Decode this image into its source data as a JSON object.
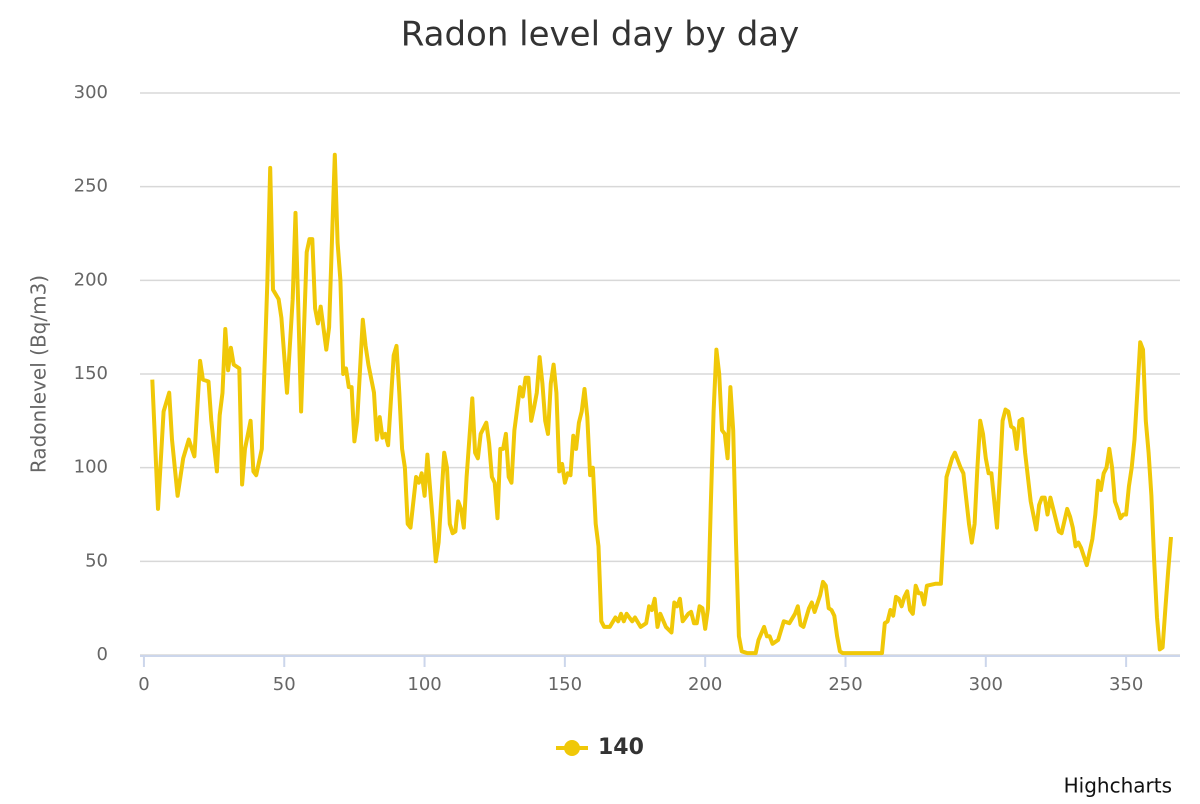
{
  "chart_data": {
    "type": "line",
    "title": "Radon level day by day",
    "y_label": "Radonlevel (Bq/m3)",
    "credits": "Highcharts",
    "xlim": [
      -1.4,
      369.2
    ],
    "xticks": [
      0,
      50,
      100,
      150,
      200,
      250,
      300,
      350
    ],
    "ylim": [
      0,
      300
    ],
    "yticks": [
      0,
      50,
      100,
      150,
      200,
      250,
      300
    ],
    "grid": true,
    "x": [
      3,
      5,
      7,
      9,
      10,
      12,
      14,
      16,
      18,
      20,
      21,
      23,
      24,
      26,
      27,
      28,
      29,
      30,
      31,
      32,
      34,
      35,
      36,
      38,
      39,
      40,
      42,
      44,
      45,
      46,
      48,
      49,
      51,
      53,
      54,
      55,
      56,
      58,
      59,
      60,
      61,
      62,
      63,
      65,
      66,
      68,
      69,
      70,
      71,
      72,
      73,
      74,
      75,
      76,
      78,
      79,
      80,
      82,
      83,
      84,
      85,
      86,
      87,
      89,
      90,
      91,
      92,
      93,
      94,
      95,
      97,
      98,
      99,
      100,
      101,
      102,
      103,
      104,
      105,
      107,
      108,
      109,
      110,
      111,
      112,
      113,
      114,
      115,
      117,
      118,
      119,
      120,
      122,
      123,
      124,
      125,
      126,
      127,
      128,
      129,
      130,
      131,
      132,
      134,
      135,
      136,
      137,
      138,
      139,
      140,
      141,
      142,
      143,
      144,
      145,
      146,
      147,
      148,
      149,
      150,
      151,
      152,
      153,
      154,
      155,
      156,
      157,
      158,
      159,
      160,
      161,
      162,
      163,
      164,
      166,
      168,
      169,
      170,
      171,
      172,
      174,
      175,
      177,
      179,
      180,
      181,
      182,
      183,
      184,
      186,
      188,
      189,
      190,
      191,
      192,
      194,
      195,
      196,
      197,
      198,
      199,
      200,
      201,
      202,
      203,
      204,
      205,
      206,
      207,
      208,
      209,
      210,
      211,
      212,
      213,
      215,
      218,
      219,
      221,
      222,
      223,
      224,
      226,
      228,
      230,
      232,
      233,
      234,
      235,
      237,
      238,
      239,
      241,
      242,
      243,
      244,
      245,
      246,
      247,
      248,
      249,
      255,
      263,
      264,
      265,
      266,
      267,
      268,
      269,
      270,
      271,
      272,
      273,
      274,
      275,
      276,
      277,
      278,
      279,
      282,
      284,
      286,
      288,
      289,
      291,
      292,
      294,
      295,
      296,
      297,
      298,
      299,
      300,
      301,
      302,
      304,
      305,
      306,
      307,
      308,
      309,
      310,
      311,
      312,
      313,
      314,
      316,
      318,
      319,
      320,
      321,
      322,
      323,
      325,
      326,
      327,
      329,
      330,
      331,
      332,
      333,
      334,
      336,
      338,
      339,
      340,
      341,
      342,
      343,
      344,
      345,
      346,
      347,
      348,
      349,
      350,
      351,
      352,
      353,
      354,
      355,
      356,
      357,
      358,
      359,
      360,
      361,
      362,
      363,
      364,
      365,
      366
    ],
    "series": [
      {
        "name": "140",
        "color": "#f0c808",
        "values": [
          147,
          78,
          130,
          140,
          115,
          85,
          105,
          115,
          106,
          157,
          147,
          146,
          125,
          98,
          128,
          140,
          174,
          152,
          164,
          155,
          153,
          91,
          110,
          125,
          98,
          96,
          110,
          200,
          260,
          195,
          190,
          180,
          140,
          190,
          236,
          185,
          130,
          215,
          222,
          222,
          185,
          177,
          186,
          163,
          175,
          267,
          220,
          200,
          150,
          153,
          143,
          143,
          114,
          125,
          179,
          165,
          155,
          140,
          115,
          127,
          116,
          118,
          112,
          160,
          165,
          140,
          110,
          100,
          70,
          68,
          95,
          92,
          97,
          85,
          107,
          88,
          70,
          50,
          60,
          108,
          100,
          70,
          65,
          66,
          82,
          78,
          68,
          95,
          137,
          108,
          105,
          118,
          124,
          113,
          95,
          92,
          73,
          110,
          110,
          118,
          95,
          92,
          120,
          143,
          138,
          148,
          148,
          125,
          132,
          140,
          159,
          145,
          125,
          118,
          145,
          155,
          140,
          98,
          102,
          92,
          97,
          96,
          117,
          110,
          124,
          130,
          142,
          127,
          96,
          100,
          70,
          58,
          18,
          15,
          15,
          20,
          18,
          22,
          18,
          22,
          18,
          20,
          15,
          17,
          26,
          24,
          30,
          15,
          22,
          15,
          12,
          28,
          26,
          30,
          18,
          22,
          23,
          17,
          17,
          26,
          25,
          14,
          25,
          80,
          130,
          163,
          150,
          120,
          118,
          105,
          143,
          120,
          60,
          10,
          2,
          1,
          1,
          8,
          15,
          10,
          10,
          6,
          8,
          18,
          17,
          22,
          26,
          16,
          15,
          25,
          28,
          23,
          32,
          39,
          37,
          25,
          24,
          21,
          10,
          2,
          1,
          1,
          1,
          17,
          18,
          24,
          21,
          31,
          30,
          26,
          31,
          34,
          24,
          22,
          37,
          33,
          33,
          27,
          37,
          38,
          38,
          95,
          105,
          108,
          100,
          97,
          70,
          60,
          70,
          100,
          125,
          118,
          105,
          97,
          97,
          68,
          95,
          125,
          131,
          130,
          122,
          121,
          110,
          125,
          126,
          108,
          82,
          67,
          80,
          84,
          84,
          75,
          84,
          72,
          66,
          65,
          78,
          74,
          68,
          58,
          60,
          57,
          48,
          62,
          75,
          93,
          88,
          97,
          100,
          110,
          100,
          82,
          78,
          73,
          75,
          75,
          90,
          100,
          115,
          140,
          167,
          163,
          125,
          108,
          85,
          50,
          20,
          3,
          4,
          25,
          45,
          63
        ]
      }
    ]
  }
}
